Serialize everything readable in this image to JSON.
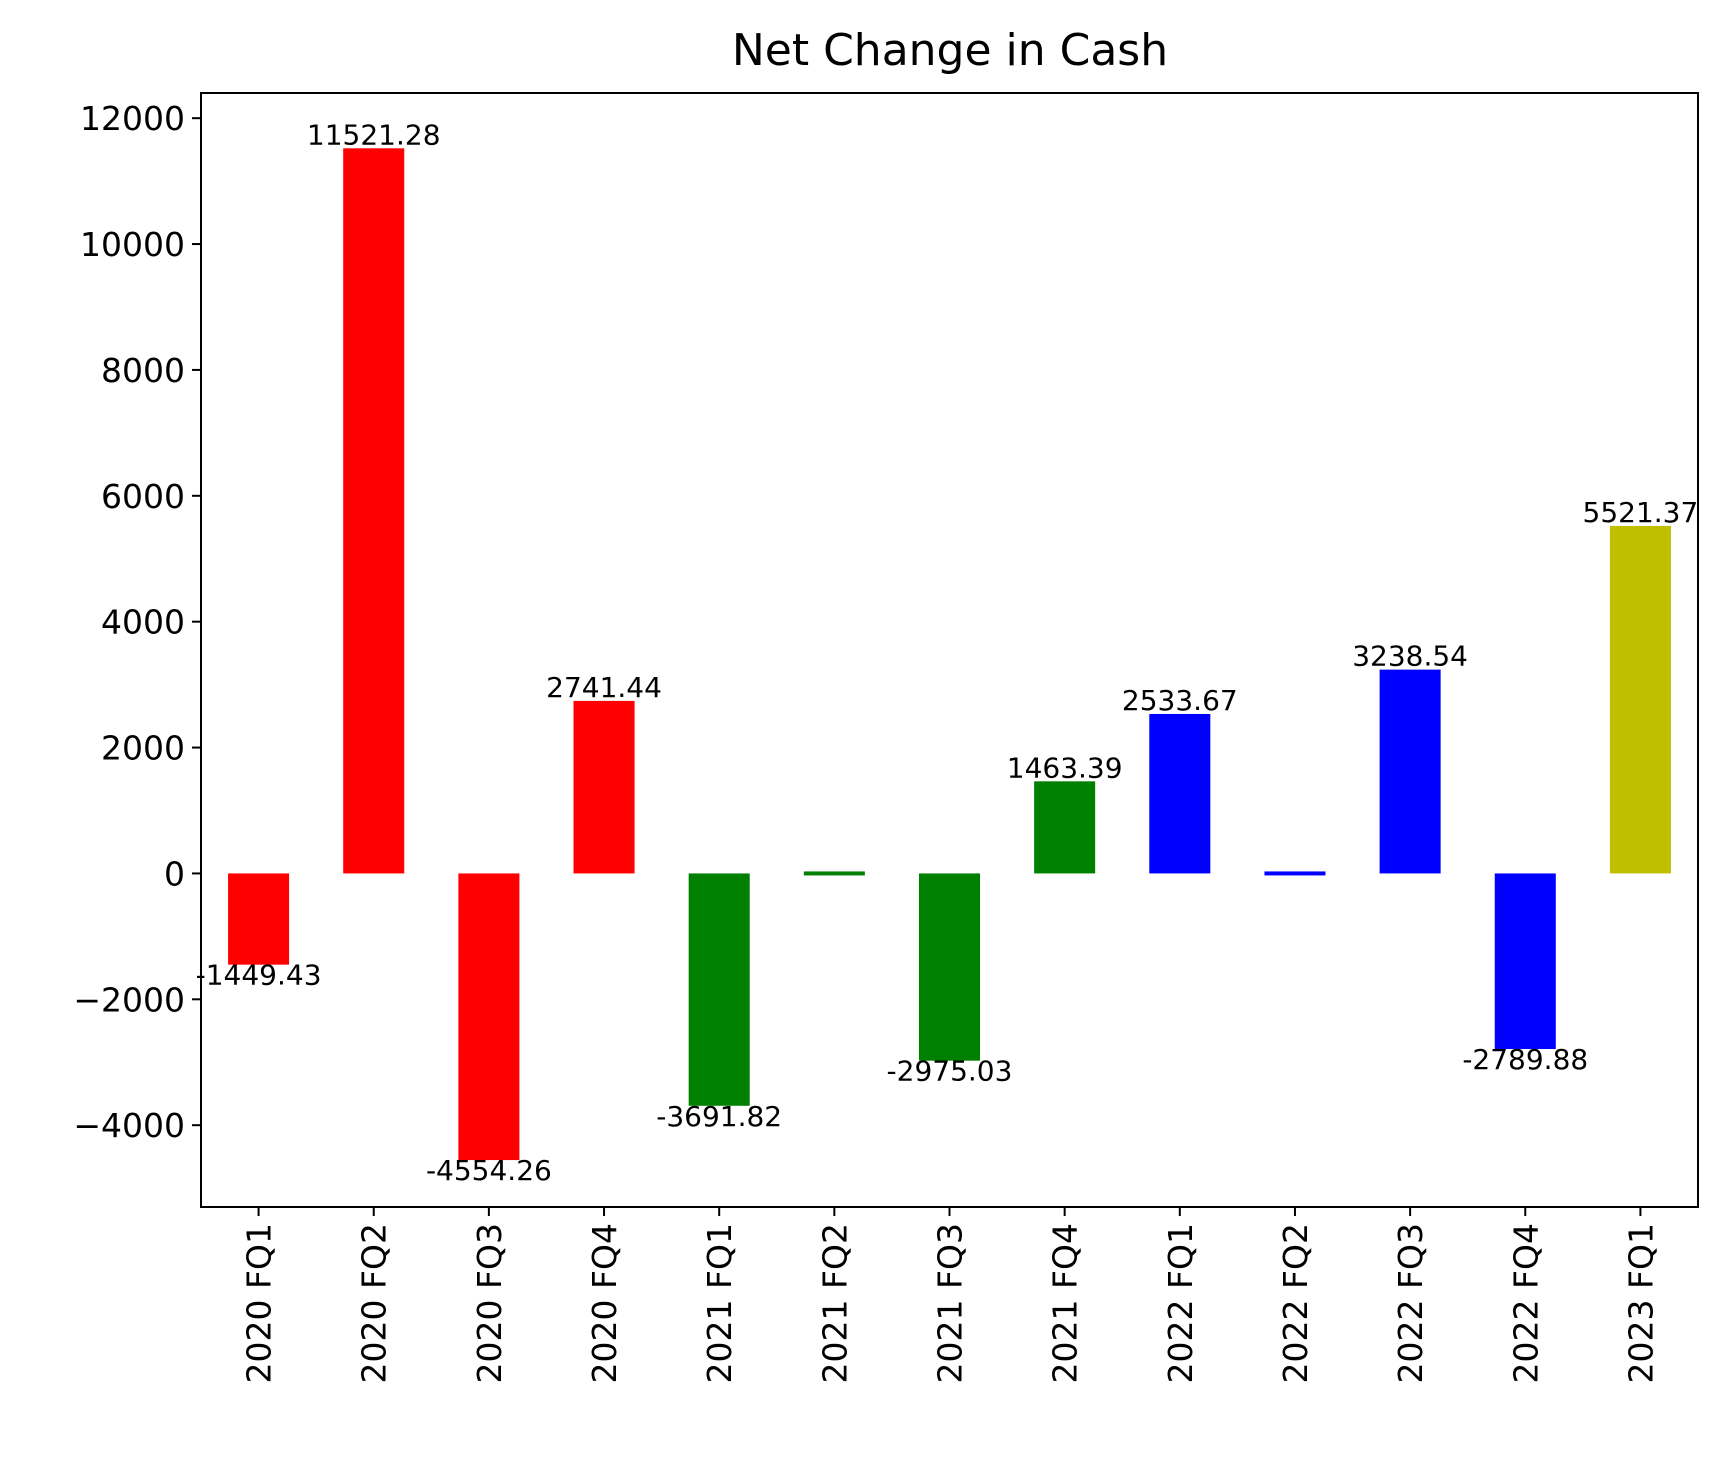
{
  "chart_data": {
    "type": "bar",
    "title": "Net Change in Cash",
    "xlabel": "",
    "ylabel": "",
    "categories": [
      "2020 FQ1",
      "2020 FQ2",
      "2020 FQ3",
      "2020 FQ4",
      "2021 FQ1",
      "2021 FQ2",
      "2021 FQ3",
      "2021 FQ4",
      "2022 FQ1",
      "2022 FQ2",
      "2022 FQ3",
      "2022 FQ4",
      "2023 FQ1"
    ],
    "values": [
      -1449.43,
      11521.28,
      -4554.26,
      2741.44,
      -3691.82,
      0,
      -2975.03,
      1463.39,
      2533.67,
      0,
      3238.54,
      -2789.88,
      5521.37
    ],
    "data_labels": [
      "-1449.43",
      "11521.28",
      "-4554.26",
      "2741.44",
      "-3691.82",
      "",
      "-2975.03",
      "1463.39",
      "2533.67",
      "",
      "3238.54",
      "-2789.88",
      "5521.37"
    ],
    "bar_colors": [
      "#ff0000",
      "#ff0000",
      "#ff0000",
      "#ff0000",
      "#008000",
      "#008000",
      "#008000",
      "#008000",
      "#0000ff",
      "#0000ff",
      "#0000ff",
      "#0000ff",
      "#bfbf00"
    ],
    "ylim": [
      -5300,
      12400
    ],
    "yticks": [
      -4000,
      -2000,
      0,
      2000,
      4000,
      6000,
      8000,
      10000,
      12000
    ],
    "ytick_labels": [
      "−4000",
      "−2000",
      "0",
      "2000",
      "4000",
      "6000",
      "8000",
      "10000",
      "12000"
    ],
    "grid": false,
    "legend": "none"
  }
}
